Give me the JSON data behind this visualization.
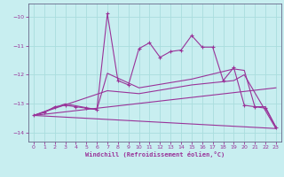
{
  "title": "",
  "xlabel": "Windchill (Refroidissement éolien,°C)",
  "background_color": "#c8eef0",
  "grid_color": "#aadddd",
  "line_color": "#993399",
  "spine_color": "#666688",
  "xlim": [
    -0.5,
    23.5
  ],
  "ylim": [
    -14.3,
    -9.55
  ],
  "yticks": [
    -14,
    -13,
    -12,
    -11,
    -10
  ],
  "xticks": [
    0,
    1,
    2,
    3,
    4,
    5,
    6,
    7,
    8,
    9,
    10,
    11,
    12,
    13,
    14,
    15,
    16,
    17,
    18,
    19,
    20,
    21,
    22,
    23
  ],
  "line1_x": [
    0,
    1,
    2,
    3,
    4,
    5,
    6,
    7,
    8,
    9,
    10,
    11,
    12,
    13,
    14,
    15,
    16,
    17,
    18,
    19,
    20,
    21,
    22,
    23
  ],
  "line1_y": [
    -13.4,
    -13.3,
    -13.1,
    -13.05,
    -13.1,
    -13.15,
    -13.2,
    -9.9,
    -12.2,
    -12.35,
    -11.1,
    -10.9,
    -11.4,
    -11.2,
    -11.15,
    -10.65,
    -11.05,
    -11.05,
    -12.2,
    -11.75,
    -13.05,
    -13.1,
    -13.15,
    -13.8
  ],
  "line2_x": [
    0,
    3,
    6,
    7,
    10,
    15,
    19,
    20,
    21,
    22,
    23
  ],
  "line2_y": [
    -13.4,
    -13.0,
    -13.2,
    -11.95,
    -12.45,
    -12.15,
    -11.8,
    -11.85,
    -13.1,
    -13.1,
    -13.8
  ],
  "line3_x": [
    0,
    23
  ],
  "line3_y": [
    -13.4,
    -12.45
  ],
  "line4_x": [
    0,
    23
  ],
  "line4_y": [
    -13.4,
    -13.85
  ],
  "line5_x": [
    0,
    7,
    10,
    15,
    19,
    20,
    23
  ],
  "line5_y": [
    -13.4,
    -12.55,
    -12.65,
    -12.35,
    -12.2,
    -12.0,
    -13.85
  ]
}
